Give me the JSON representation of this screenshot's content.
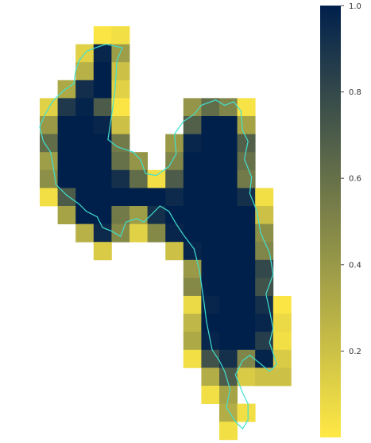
{
  "chart_data": {
    "type": "heatmap",
    "title": "",
    "xlabel": "",
    "ylabel": "",
    "colormap": "cividis (reversed)",
    "color_low": "#ffe945",
    "color_high": "#00204c",
    "background": "#ffffff",
    "outline_color": "#40e0d0",
    "colorbar": {
      "range": [
        0.0,
        1.0
      ],
      "ticks": [
        0.2,
        0.4,
        0.6,
        0.8,
        1.0
      ],
      "tick_labels": [
        "0.2",
        "0.4",
        "0.6",
        "0.8",
        "1.0"
      ]
    },
    "cells": [
      {
        "row": 0,
        "col": 3,
        "v": 0.02
      },
      {
        "row": 0,
        "col": 4,
        "v": 0.05
      },
      {
        "row": 1,
        "col": 2,
        "v": 0.12
      },
      {
        "row": 1,
        "col": 3,
        "v": 0.97
      },
      {
        "row": 1,
        "col": 4,
        "v": 0.38
      },
      {
        "row": 2,
        "col": 2,
        "v": 0.28
      },
      {
        "row": 2,
        "col": 3,
        "v": 1.0
      },
      {
        "row": 2,
        "col": 4,
        "v": 0.2
      },
      {
        "row": 3,
        "col": 1,
        "v": 0.32
      },
      {
        "row": 3,
        "col": 2,
        "v": 0.93
      },
      {
        "row": 3,
        "col": 3,
        "v": 1.0
      },
      {
        "row": 3,
        "col": 4,
        "v": 0.12
      },
      {
        "row": 4,
        "col": 0,
        "v": 0.12
      },
      {
        "row": 4,
        "col": 1,
        "v": 0.88
      },
      {
        "row": 4,
        "col": 2,
        "v": 0.98
      },
      {
        "row": 4,
        "col": 3,
        "v": 0.7
      },
      {
        "row": 4,
        "col": 4,
        "v": 0.02
      },
      {
        "row": 4,
        "col": 8,
        "v": 0.42
      },
      {
        "row": 4,
        "col": 9,
        "v": 0.62
      },
      {
        "row": 4,
        "col": 10,
        "v": 0.5
      },
      {
        "row": 4,
        "col": 11,
        "v": 0.03
      },
      {
        "row": 5,
        "col": 0,
        "v": 0.4
      },
      {
        "row": 5,
        "col": 1,
        "v": 1.0
      },
      {
        "row": 5,
        "col": 2,
        "v": 1.0
      },
      {
        "row": 5,
        "col": 3,
        "v": 0.97
      },
      {
        "row": 5,
        "col": 4,
        "v": 0.2
      },
      {
        "row": 5,
        "col": 8,
        "v": 0.68
      },
      {
        "row": 5,
        "col": 9,
        "v": 1.0
      },
      {
        "row": 5,
        "col": 10,
        "v": 1.0
      },
      {
        "row": 5,
        "col": 11,
        "v": 0.35
      },
      {
        "row": 6,
        "col": 0,
        "v": 0.62
      },
      {
        "row": 6,
        "col": 1,
        "v": 1.0
      },
      {
        "row": 6,
        "col": 2,
        "v": 1.0
      },
      {
        "row": 6,
        "col": 3,
        "v": 1.0
      },
      {
        "row": 6,
        "col": 4,
        "v": 0.55
      },
      {
        "row": 6,
        "col": 7,
        "v": 0.4
      },
      {
        "row": 6,
        "col": 8,
        "v": 0.97
      },
      {
        "row": 6,
        "col": 9,
        "v": 1.0
      },
      {
        "row": 6,
        "col": 10,
        "v": 1.0
      },
      {
        "row": 6,
        "col": 11,
        "v": 0.68
      },
      {
        "row": 7,
        "col": 0,
        "v": 0.38
      },
      {
        "row": 7,
        "col": 1,
        "v": 1.0
      },
      {
        "row": 7,
        "col": 2,
        "v": 1.0
      },
      {
        "row": 7,
        "col": 3,
        "v": 1.0
      },
      {
        "row": 7,
        "col": 4,
        "v": 0.6
      },
      {
        "row": 7,
        "col": 5,
        "v": 0.42
      },
      {
        "row": 7,
        "col": 7,
        "v": 0.5
      },
      {
        "row": 7,
        "col": 8,
        "v": 1.0
      },
      {
        "row": 7,
        "col": 9,
        "v": 1.0
      },
      {
        "row": 7,
        "col": 10,
        "v": 1.0
      },
      {
        "row": 7,
        "col": 11,
        "v": 0.6
      },
      {
        "row": 8,
        "col": 0,
        "v": 0.45
      },
      {
        "row": 8,
        "col": 1,
        "v": 1.0
      },
      {
        "row": 8,
        "col": 2,
        "v": 1.0
      },
      {
        "row": 8,
        "col": 3,
        "v": 1.0
      },
      {
        "row": 8,
        "col": 4,
        "v": 0.92
      },
      {
        "row": 8,
        "col": 5,
        "v": 0.62
      },
      {
        "row": 8,
        "col": 6,
        "v": 0.05
      },
      {
        "row": 8,
        "col": 7,
        "v": 0.7
      },
      {
        "row": 8,
        "col": 8,
        "v": 1.0
      },
      {
        "row": 8,
        "col": 9,
        "v": 1.0
      },
      {
        "row": 8,
        "col": 10,
        "v": 1.0
      },
      {
        "row": 8,
        "col": 11,
        "v": 0.55
      },
      {
        "row": 9,
        "col": 0,
        "v": 0.05
      },
      {
        "row": 9,
        "col": 1,
        "v": 0.7
      },
      {
        "row": 9,
        "col": 2,
        "v": 1.0
      },
      {
        "row": 9,
        "col": 3,
        "v": 1.0
      },
      {
        "row": 9,
        "col": 4,
        "v": 1.0
      },
      {
        "row": 9,
        "col": 5,
        "v": 1.0
      },
      {
        "row": 9,
        "col": 6,
        "v": 1.0
      },
      {
        "row": 9,
        "col": 7,
        "v": 0.95
      },
      {
        "row": 9,
        "col": 8,
        "v": 1.0
      },
      {
        "row": 9,
        "col": 9,
        "v": 1.0
      },
      {
        "row": 9,
        "col": 10,
        "v": 1.0
      },
      {
        "row": 9,
        "col": 11,
        "v": 0.92
      },
      {
        "row": 9,
        "col": 12,
        "v": 0.05
      },
      {
        "row": 10,
        "col": 1,
        "v": 0.35
      },
      {
        "row": 10,
        "col": 2,
        "v": 1.0
      },
      {
        "row": 10,
        "col": 3,
        "v": 1.0
      },
      {
        "row": 10,
        "col": 4,
        "v": 0.55
      },
      {
        "row": 10,
        "col": 5,
        "v": 0.38
      },
      {
        "row": 10,
        "col": 6,
        "v": 0.92
      },
      {
        "row": 10,
        "col": 7,
        "v": 1.0
      },
      {
        "row": 10,
        "col": 8,
        "v": 1.0
      },
      {
        "row": 10,
        "col": 9,
        "v": 1.0
      },
      {
        "row": 10,
        "col": 10,
        "v": 1.0
      },
      {
        "row": 10,
        "col": 11,
        "v": 1.0
      },
      {
        "row": 10,
        "col": 12,
        "v": 0.2
      },
      {
        "row": 11,
        "col": 2,
        "v": 0.28
      },
      {
        "row": 11,
        "col": 3,
        "v": 0.95
      },
      {
        "row": 11,
        "col": 4,
        "v": 0.48
      },
      {
        "row": 11,
        "col": 5,
        "v": 0.12
      },
      {
        "row": 11,
        "col": 6,
        "v": 0.48
      },
      {
        "row": 11,
        "col": 7,
        "v": 0.97
      },
      {
        "row": 11,
        "col": 8,
        "v": 1.0
      },
      {
        "row": 11,
        "col": 9,
        "v": 1.0
      },
      {
        "row": 11,
        "col": 10,
        "v": 1.0
      },
      {
        "row": 11,
        "col": 11,
        "v": 1.0
      },
      {
        "row": 11,
        "col": 12,
        "v": 0.45
      },
      {
        "row": 12,
        "col": 3,
        "v": 0.15
      },
      {
        "row": 12,
        "col": 7,
        "v": 0.2
      },
      {
        "row": 12,
        "col": 8,
        "v": 0.97
      },
      {
        "row": 12,
        "col": 9,
        "v": 1.0
      },
      {
        "row": 12,
        "col": 10,
        "v": 1.0
      },
      {
        "row": 12,
        "col": 11,
        "v": 1.0
      },
      {
        "row": 12,
        "col": 12,
        "v": 0.5
      },
      {
        "row": 13,
        "col": 8,
        "v": 0.4
      },
      {
        "row": 13,
        "col": 9,
        "v": 1.0
      },
      {
        "row": 13,
        "col": 10,
        "v": 1.0
      },
      {
        "row": 13,
        "col": 11,
        "v": 1.0
      },
      {
        "row": 13,
        "col": 12,
        "v": 0.8
      },
      {
        "row": 14,
        "col": 8,
        "v": 0.48
      },
      {
        "row": 14,
        "col": 9,
        "v": 1.0
      },
      {
        "row": 14,
        "col": 10,
        "v": 1.0
      },
      {
        "row": 14,
        "col": 11,
        "v": 1.0
      },
      {
        "row": 14,
        "col": 12,
        "v": 0.75
      },
      {
        "row": 15,
        "col": 8,
        "v": 0.08
      },
      {
        "row": 15,
        "col": 9,
        "v": 0.97
      },
      {
        "row": 15,
        "col": 10,
        "v": 1.0
      },
      {
        "row": 15,
        "col": 11,
        "v": 1.0
      },
      {
        "row": 15,
        "col": 12,
        "v": 0.92
      },
      {
        "row": 15,
        "col": 13,
        "v": 0.02
      },
      {
        "row": 16,
        "col": 8,
        "v": 0.25
      },
      {
        "row": 16,
        "col": 9,
        "v": 1.0
      },
      {
        "row": 16,
        "col": 10,
        "v": 1.0
      },
      {
        "row": 16,
        "col": 11,
        "v": 1.0
      },
      {
        "row": 16,
        "col": 12,
        "v": 0.97
      },
      {
        "row": 16,
        "col": 13,
        "v": 0.08
      },
      {
        "row": 17,
        "col": 8,
        "v": 0.32
      },
      {
        "row": 17,
        "col": 9,
        "v": 0.97
      },
      {
        "row": 17,
        "col": 10,
        "v": 1.0
      },
      {
        "row": 17,
        "col": 11,
        "v": 1.0
      },
      {
        "row": 17,
        "col": 12,
        "v": 0.85
      },
      {
        "row": 17,
        "col": 13,
        "v": 0.05
      },
      {
        "row": 18,
        "col": 8,
        "v": 0.05
      },
      {
        "row": 18,
        "col": 9,
        "v": 0.75
      },
      {
        "row": 18,
        "col": 10,
        "v": 0.92
      },
      {
        "row": 18,
        "col": 11,
        "v": 0.5
      },
      {
        "row": 18,
        "col": 12,
        "v": 0.98
      },
      {
        "row": 18,
        "col": 13,
        "v": 0.15
      },
      {
        "row": 19,
        "col": 9,
        "v": 0.3
      },
      {
        "row": 19,
        "col": 10,
        "v": 0.7
      },
      {
        "row": 19,
        "col": 11,
        "v": 0.15
      },
      {
        "row": 19,
        "col": 12,
        "v": 0.2
      },
      {
        "row": 19,
        "col": 13,
        "v": 0.2
      },
      {
        "row": 20,
        "col": 9,
        "v": 0.05
      },
      {
        "row": 20,
        "col": 10,
        "v": 0.35
      },
      {
        "row": 21,
        "col": 10,
        "v": 0.3
      },
      {
        "row": 21,
        "col": 11,
        "v": 0.05
      },
      {
        "row": 22,
        "col": 10,
        "v": 0.05
      }
    ],
    "outline": [
      [
        3.7,
        1.0
      ],
      [
        4.6,
        1.2
      ],
      [
        4.3,
        1.9
      ],
      [
        4.2,
        3.5
      ],
      [
        4.0,
        5.0
      ],
      [
        3.8,
        6.3
      ],
      [
        4.3,
        6.7
      ],
      [
        5.2,
        7.0
      ],
      [
        5.6,
        7.4
      ],
      [
        5.9,
        8.2
      ],
      [
        6.5,
        8.3
      ],
      [
        7.2,
        7.8
      ],
      [
        7.6,
        7.1
      ],
      [
        7.5,
        6.0
      ],
      [
        8.0,
        5.3
      ],
      [
        8.6,
        4.9
      ],
      [
        9.0,
        4.4
      ],
      [
        9.8,
        4.1
      ],
      [
        10.3,
        4.4
      ],
      [
        10.8,
        4.2
      ],
      [
        11.2,
        4.7
      ],
      [
        11.3,
        5.8
      ],
      [
        11.6,
        6.4
      ],
      [
        11.4,
        7.4
      ],
      [
        11.8,
        8.4
      ],
      [
        11.7,
        9.3
      ],
      [
        12.1,
        10.3
      ],
      [
        12.3,
        11.5
      ],
      [
        12.8,
        12.6
      ],
      [
        13.0,
        13.8
      ],
      [
        12.6,
        14.9
      ],
      [
        12.8,
        15.8
      ],
      [
        13.0,
        16.8
      ],
      [
        12.8,
        17.6
      ],
      [
        13.2,
        18.8
      ],
      [
        12.8,
        19.2
      ],
      [
        12.2,
        18.7
      ],
      [
        11.7,
        18.3
      ],
      [
        11.3,
        18.6
      ],
      [
        10.9,
        19.4
      ],
      [
        11.3,
        20.4
      ],
      [
        11.6,
        21.0
      ],
      [
        11.6,
        21.9
      ],
      [
        11.3,
        22.4
      ],
      [
        10.9,
        22.0
      ],
      [
        10.4,
        21.2
      ],
      [
        10.6,
        20.2
      ],
      [
        10.3,
        19.2
      ],
      [
        10.0,
        18.6
      ],
      [
        9.6,
        18.0
      ],
      [
        9.3,
        16.5
      ],
      [
        9.1,
        15.0
      ],
      [
        8.9,
        13.6
      ],
      [
        8.6,
        12.4
      ],
      [
        8.0,
        11.6
      ],
      [
        7.6,
        11.0
      ],
      [
        7.2,
        10.3
      ],
      [
        6.7,
        10.0
      ],
      [
        6.3,
        10.4
      ],
      [
        5.8,
        10.9
      ],
      [
        5.4,
        10.7
      ],
      [
        4.8,
        10.9
      ],
      [
        4.5,
        11.7
      ],
      [
        4.0,
        11.4
      ],
      [
        3.5,
        11.2
      ],
      [
        3.2,
        10.6
      ],
      [
        2.6,
        10.3
      ],
      [
        2.2,
        9.9
      ],
      [
        1.5,
        9.4
      ],
      [
        0.9,
        8.8
      ],
      [
        0.8,
        8.1
      ],
      [
        0.6,
        7.0
      ],
      [
        0.2,
        6.4
      ],
      [
        0.0,
        5.6
      ],
      [
        0.3,
        4.9
      ],
      [
        0.7,
        4.2
      ],
      [
        1.3,
        3.6
      ],
      [
        1.9,
        3.2
      ],
      [
        2.0,
        2.5
      ],
      [
        2.2,
        1.9
      ],
      [
        2.6,
        1.4
      ],
      [
        3.1,
        1.2
      ],
      [
        3.7,
        1.0
      ]
    ]
  }
}
